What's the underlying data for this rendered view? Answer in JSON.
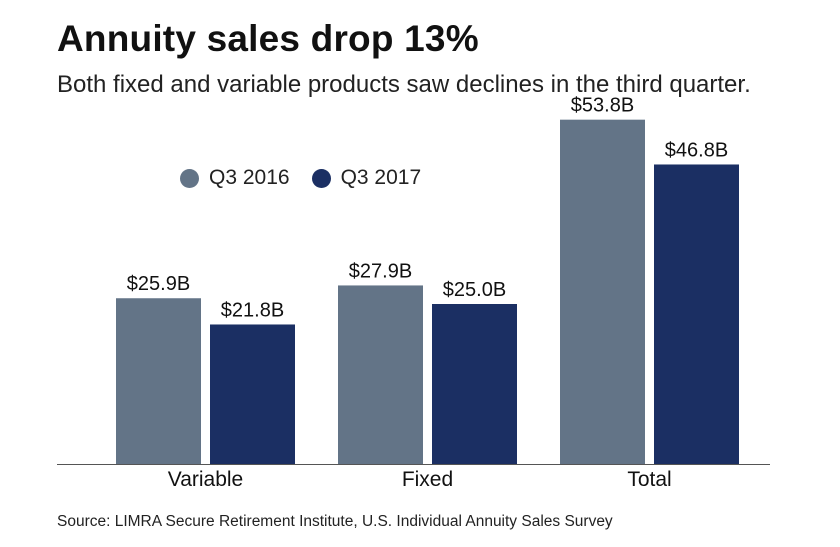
{
  "header": {
    "title": "Annuity sales drop 13%",
    "subtitle": "Both fixed and variable products saw declines in the third quarter."
  },
  "footer": {
    "source": "Source: LIMRA Secure Retirement Institute, U.S. Individual Annuity Sales Survey"
  },
  "colors": {
    "q3_2016": "#637487",
    "q3_2017": "#1b2f63",
    "axis": "#555555"
  },
  "chart_data": {
    "type": "bar",
    "title": "Annuity sales drop 13%",
    "subtitle": "Both fixed and variable products saw declines in the third quarter.",
    "xlabel": "",
    "ylabel": "",
    "ylim": [
      0,
      60
    ],
    "categories": [
      "Variable",
      "Fixed",
      "Total"
    ],
    "series": [
      {
        "name": "Q3 2016",
        "values": [
          25.9,
          27.9,
          53.8
        ],
        "labels": [
          "$25.9B",
          "$27.9B",
          "$53.8B"
        ]
      },
      {
        "name": "Q3 2017",
        "values": [
          21.8,
          25.0,
          46.8
        ],
        "labels": [
          "$21.8B",
          "$25.0B",
          "$46.8B"
        ]
      }
    ],
    "legend": "top-left",
    "grid": false
  }
}
